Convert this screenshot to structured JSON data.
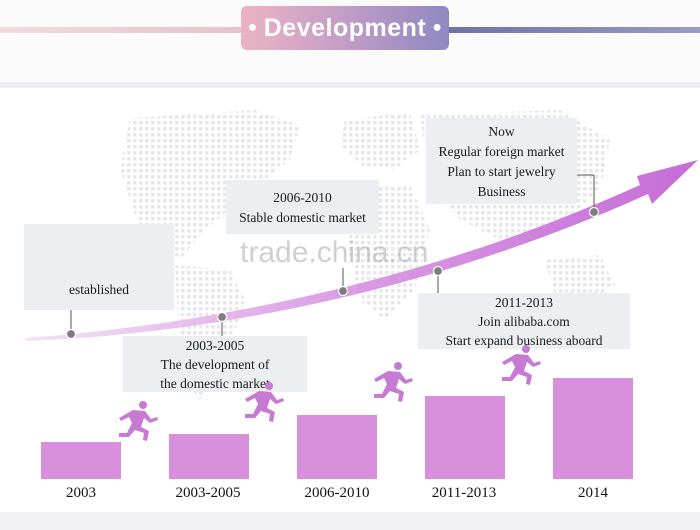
{
  "title": "Development",
  "milestones": [
    {
      "lines": [
        "established"
      ]
    },
    {
      "lines": [
        "2003-2005",
        "The development of",
        "the domestic market"
      ]
    },
    {
      "lines": [
        "2006-2010",
        "Stable domestic market"
      ]
    },
    {
      "lines": [
        "2011-2013",
        "Join alibaba.com",
        "Start expand business aboard"
      ]
    },
    {
      "lines": [
        "Now",
        "Regular foreign market",
        "Plan to start jewelry",
        "Business"
      ]
    }
  ],
  "years": [
    "2003",
    "2003-2005",
    "2006-2010",
    "2011-2013",
    "2014"
  ],
  "watermark": "trade.china.cn",
  "colors": {
    "bar": "#d890dd",
    "arrow": "#c76fd6",
    "note_bg": "#eceef1"
  }
}
